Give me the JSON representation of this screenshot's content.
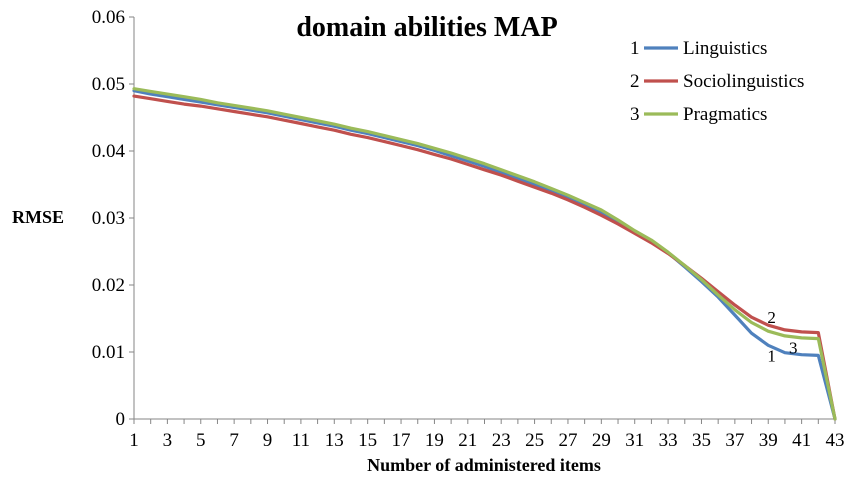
{
  "chart_data": {
    "type": "line",
    "title": "domain abilities MAP",
    "xlabel": "Number of administered items",
    "ylabel": "RMSE",
    "xlim": [
      1,
      43
    ],
    "ylim": [
      0,
      0.06
    ],
    "x_ticks": [
      "1",
      "3",
      "5",
      "7",
      "9",
      "11",
      "13",
      "15",
      "17",
      "19",
      "21",
      "23",
      "25",
      "27",
      "29",
      "31",
      "33",
      "35",
      "37",
      "39",
      "41",
      "43"
    ],
    "y_ticks": [
      "0",
      "0.01",
      "0.02",
      "0.03",
      "0.04",
      "0.05",
      "0.06"
    ],
    "grid": false,
    "legend_position": "top-right",
    "x": [
      1,
      2,
      3,
      4,
      5,
      6,
      7,
      8,
      9,
      10,
      11,
      12,
      13,
      14,
      15,
      16,
      17,
      18,
      19,
      20,
      21,
      22,
      23,
      24,
      25,
      26,
      27,
      28,
      29,
      30,
      31,
      32,
      33,
      34,
      35,
      36,
      37,
      38,
      39,
      40,
      41,
      42,
      43
    ],
    "series": [
      {
        "name": "Linguistics",
        "marker": "1",
        "color": "#4f81bd",
        "values": [
          0.049,
          0.0485,
          0.0481,
          0.0477,
          0.0473,
          0.0469,
          0.0465,
          0.0461,
          0.0457,
          0.0452,
          0.0447,
          0.0442,
          0.0437,
          0.0431,
          0.0426,
          0.042,
          0.0414,
          0.0408,
          0.0401,
          0.0393,
          0.0385,
          0.0377,
          0.0368,
          0.0359,
          0.035,
          0.034,
          0.033,
          0.0319,
          0.0308,
          0.0294,
          0.0279,
          0.0266,
          0.0248,
          0.0227,
          0.0205,
          0.0182,
          0.0155,
          0.0128,
          0.011,
          0.0099,
          0.0096,
          0.0095,
          0.0
        ]
      },
      {
        "name": "Sociolinguistics",
        "marker": "2",
        "color": "#c0504d",
        "values": [
          0.0482,
          0.0478,
          0.0474,
          0.047,
          0.0467,
          0.0463,
          0.0459,
          0.0455,
          0.0451,
          0.0446,
          0.0441,
          0.0436,
          0.0431,
          0.0425,
          0.042,
          0.0414,
          0.0408,
          0.0402,
          0.0395,
          0.0388,
          0.038,
          0.0372,
          0.0364,
          0.0355,
          0.0346,
          0.0337,
          0.0327,
          0.0316,
          0.0304,
          0.0291,
          0.0277,
          0.0263,
          0.0247,
          0.0229,
          0.021,
          0.019,
          0.017,
          0.0152,
          0.014,
          0.0133,
          0.013,
          0.0129,
          0.0
        ]
      },
      {
        "name": "Pragmatics",
        "marker": "3",
        "color": "#9bbb59",
        "values": [
          0.0493,
          0.0489,
          0.0485,
          0.0481,
          0.0477,
          0.0472,
          0.0468,
          0.0464,
          0.046,
          0.0455,
          0.045,
          0.0445,
          0.044,
          0.0434,
          0.0429,
          0.0423,
          0.0417,
          0.0411,
          0.0404,
          0.0397,
          0.0389,
          0.0381,
          0.0372,
          0.0363,
          0.0354,
          0.0344,
          0.0334,
          0.0323,
          0.0312,
          0.0297,
          0.0281,
          0.0267,
          0.0249,
          0.0229,
          0.0208,
          0.0185,
          0.0163,
          0.0144,
          0.0131,
          0.0124,
          0.0121,
          0.012,
          0.0
        ]
      }
    ],
    "annotations": [
      {
        "text": "1",
        "x": 39.2,
        "y": 0.0095
      },
      {
        "text": "2",
        "x": 39.2,
        "y": 0.0152
      },
      {
        "text": "3",
        "x": 40.5,
        "y": 0.0107
      }
    ]
  }
}
